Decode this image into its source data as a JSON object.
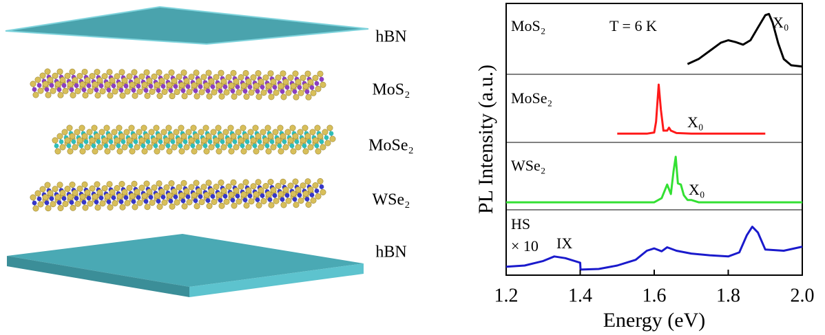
{
  "illustration": {
    "labels": [
      "hBN",
      "MoS₂",
      "MoSe₂",
      "WSe₂",
      "hBN"
    ]
  },
  "figure": {
    "ylabel": "PL Intensity (a.u.)"
  },
  "chart_data": [
    {
      "type": "line",
      "label": "MoS₂",
      "annotations": [
        "T = 6 K"
      ],
      "peak_label": "X₀",
      "x": [
        1.69,
        1.72,
        1.75,
        1.78,
        1.8,
        1.82,
        1.84,
        1.86,
        1.88,
        1.9,
        1.91,
        1.92,
        1.935,
        1.95,
        1.97,
        2.0
      ],
      "series": [
        {
          "color": "#000000",
          "values": [
            0.12,
            0.2,
            0.33,
            0.46,
            0.5,
            0.47,
            0.43,
            0.5,
            0.7,
            0.9,
            0.92,
            0.78,
            0.45,
            0.2,
            0.1,
            0.08
          ]
        }
      ],
      "xlim": [
        1.2,
        2.0
      ],
      "ylim": [
        0,
        1
      ]
    },
    {
      "type": "line",
      "label": "MoSe₂",
      "annotations": [],
      "peak_label": "X₀",
      "x": [
        1.5,
        1.58,
        1.6,
        1.605,
        1.612,
        1.618,
        1.625,
        1.635,
        1.64,
        1.645,
        1.66,
        1.7,
        1.9
      ],
      "series": [
        {
          "color": "#ff1a1a",
          "values": [
            0.1,
            0.1,
            0.12,
            0.3,
            0.92,
            0.5,
            0.15,
            0.15,
            0.2,
            0.15,
            0.11,
            0.1,
            0.1
          ]
        }
      ],
      "xlim": [
        1.2,
        2.0
      ],
      "ylim": [
        0,
        1
      ]
    },
    {
      "type": "line",
      "label": "WSe₂",
      "annotations": [],
      "peak_label": "X₀",
      "x": [
        1.2,
        1.6,
        1.62,
        1.635,
        1.645,
        1.652,
        1.658,
        1.664,
        1.672,
        1.68,
        1.69,
        1.7,
        1.72,
        2.0
      ],
      "series": [
        {
          "color": "#33e033",
          "values": [
            0.08,
            0.08,
            0.15,
            0.38,
            0.22,
            0.6,
            0.85,
            0.4,
            0.38,
            0.2,
            0.12,
            0.12,
            0.08,
            0.08
          ]
        }
      ],
      "xlim": [
        1.2,
        2.0
      ],
      "ylim": [
        0,
        1
      ]
    },
    {
      "type": "line",
      "label": "HS",
      "annotations": [
        "× 10"
      ],
      "peak_label": "IX",
      "x": [
        1.2,
        1.25,
        1.3,
        1.33,
        1.36,
        1.4,
        1.401,
        1.45,
        1.5,
        1.55,
        1.58,
        1.6,
        1.62,
        1.635,
        1.66,
        1.7,
        1.75,
        1.8,
        1.83,
        1.85,
        1.865,
        1.88,
        1.9,
        1.95,
        2.0
      ],
      "series": [
        {
          "color": "#1a1acc",
          "values": [
            0.1,
            0.12,
            0.2,
            0.28,
            0.25,
            0.17,
            0.05,
            0.06,
            0.12,
            0.22,
            0.38,
            0.42,
            0.37,
            0.44,
            0.38,
            0.33,
            0.3,
            0.28,
            0.35,
            0.65,
            0.8,
            0.7,
            0.4,
            0.38,
            0.45
          ]
        }
      ],
      "xlim": [
        1.2,
        2.0
      ],
      "ylim": [
        0,
        1
      ],
      "xticks": [
        1.2,
        1.4,
        1.6,
        1.8,
        {
          "value": 2.0,
          "label": "2.0"
        }
      ],
      "xlabel": "Energy (eV)"
    }
  ]
}
